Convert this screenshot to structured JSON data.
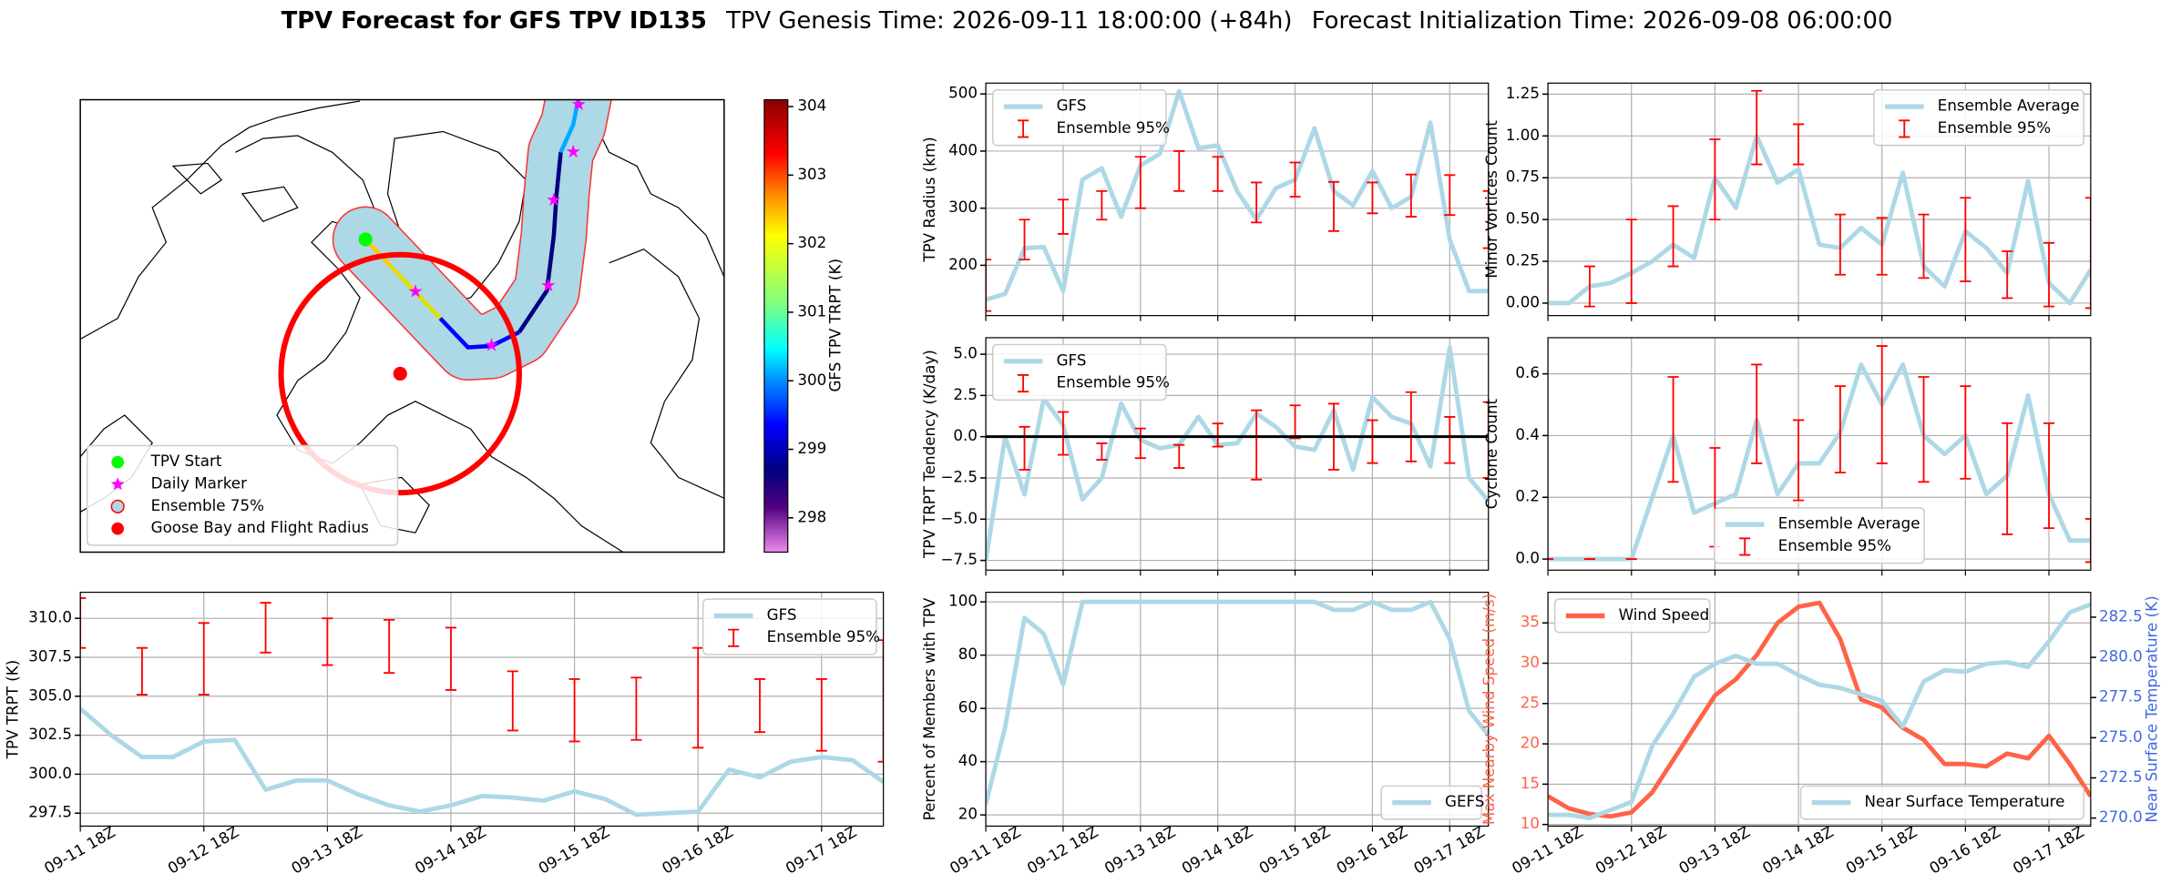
{
  "suptitle": {
    "bold": "TPV Forecast for GFS TPV ID135",
    "genesis": "TPV Genesis Time: 2026-09-11 18:00:00 (+84h)",
    "init": "Forecast Initialization Time: 2026-09-08 06:00:00"
  },
  "chart_data": [
    {
      "type": "map",
      "legend": [
        {
          "name": "TPV Start",
          "color": "#00ff00",
          "marker": "circle"
        },
        {
          "name": "Daily Marker",
          "color": "#ff00ff",
          "marker": "star"
        },
        {
          "name": "Ensemble 75%",
          "color": "#add8e6",
          "marker": "circle",
          "edge": "#ff0000"
        },
        {
          "name": "Goose Bay and Flight Radius",
          "color": "#ff0000",
          "marker": "circle"
        }
      ],
      "colorbar": {
        "label": "GFS TPV TRPT (K)",
        "ylim": [
          297.5,
          304.1
        ],
        "yticks": [
          298,
          299,
          300,
          301,
          302,
          303,
          304
        ]
      }
    },
    {
      "type": "line",
      "ylabel": "TPV TRPT (K)",
      "legend": "upper right",
      "grid": true,
      "categories": [
        "09-11 18Z",
        null,
        null,
        null,
        "09-12 18Z",
        null,
        null,
        null,
        "09-13 18Z",
        null,
        null,
        null,
        "09-14 18Z",
        null,
        null,
        null,
        "09-15 18Z",
        null,
        null,
        null,
        "09-16 18Z",
        null,
        null,
        null,
        "09-17 18Z",
        null,
        null
      ],
      "ylim": [
        296.67,
        311.67
      ],
      "yticks": [
        297.5,
        {
          "value": 300,
          "label": "300.0"
        },
        302.5,
        {
          "value": 305,
          "label": "305.0"
        },
        307.5,
        {
          "value": 310,
          "label": "310.0"
        }
      ],
      "series": [
        {
          "name": "GFS",
          "color": "#add8e6",
          "values": [
            304.2,
            302.5,
            301.1,
            301.1,
            302.1,
            302.2,
            299.0,
            299.6,
            299.6,
            298.7,
            298.0,
            297.6,
            298.0,
            298.6,
            298.5,
            298.3,
            298.9,
            298.4,
            297.4,
            297.5,
            297.6,
            300.3,
            299.8,
            300.8,
            301.1,
            300.9,
            299.5
          ]
        },
        {
          "name": "Ensemble 95%",
          "color": "#ff0000",
          "kind": "errorbar",
          "values": [
            309.7,
            null,
            306.6,
            null,
            307.4,
            null,
            309.4,
            null,
            308.5,
            null,
            308.2,
            null,
            307.4,
            null,
            304.7,
            null,
            304.1,
            null,
            304.2,
            null,
            304.9,
            null,
            304.4,
            null,
            303.8,
            null,
            304.7
          ],
          "errors": [
            1.6,
            null,
            1.5,
            null,
            2.3,
            null,
            1.6,
            null,
            1.5,
            null,
            1.7,
            null,
            2.0,
            null,
            1.9,
            null,
            2.0,
            null,
            2.0,
            null,
            3.2,
            null,
            1.7,
            null,
            2.3,
            null,
            3.9
          ]
        }
      ]
    },
    {
      "type": "line",
      "ylabel": "TPV Radius (km)",
      "legend": "upper left",
      "grid": true,
      "ylim": [
        112,
        519
      ],
      "yticks": [
        200,
        300,
        400,
        500
      ],
      "series": [
        {
          "name": "GFS",
          "color": "#add8e6",
          "values": [
            140,
            150,
            230,
            232,
            155,
            350,
            370,
            285,
            375,
            395,
            505,
            405,
            410,
            330,
            280,
            335,
            350,
            440,
            330,
            305,
            365,
            300,
            320,
            450,
            245,
            155,
            155
          ]
        },
        {
          "name": "Ensemble 95%",
          "color": "#ff0000",
          "kind": "errorbar",
          "values": [
            165,
            null,
            245,
            null,
            285,
            null,
            305,
            null,
            345,
            null,
            365,
            null,
            360,
            null,
            310,
            null,
            350,
            null,
            303,
            null,
            318,
            null,
            322,
            null,
            323,
            null,
            280
          ],
          "errors": [
            45,
            null,
            35,
            null,
            30,
            null,
            25,
            null,
            45,
            null,
            35,
            null,
            30,
            null,
            35,
            null,
            30,
            null,
            43,
            null,
            27,
            null,
            37,
            null,
            35,
            null,
            50
          ]
        }
      ]
    },
    {
      "type": "line",
      "ylabel": "TPV TRPT Tendency (K/day)",
      "legend": "upper left",
      "grid": true,
      "hline": 0,
      "ylim": [
        -8.09,
        6.0
      ],
      "yticks": [
        {
          "value": -7.5,
          "label": "−7.5"
        },
        {
          "value": -5,
          "label": "−5.0"
        },
        {
          "value": -2.5,
          "label": "−2.5"
        },
        {
          "value": 0,
          "label": "0.0"
        },
        2.5,
        {
          "value": 5,
          "label": "5.0"
        }
      ],
      "series": [
        {
          "name": "GFS",
          "color": "#add8e6",
          "values": [
            -7.5,
            0.0,
            -3.5,
            2.3,
            0.7,
            -3.8,
            -2.5,
            2.0,
            -0.2,
            -0.7,
            -0.5,
            1.2,
            -0.5,
            -0.4,
            1.4,
            0.6,
            -0.6,
            -0.8,
            1.6,
            -2.0,
            2.4,
            1.2,
            0.8,
            -1.8,
            5.4,
            -2.5,
            -3.9
          ]
        },
        {
          "name": "Ensemble 95%",
          "color": "#ff0000",
          "kind": "errorbar",
          "values": [
            null,
            null,
            -0.7,
            null,
            0.2,
            null,
            -0.9,
            null,
            -0.4,
            null,
            -1.2,
            null,
            0.1,
            null,
            -0.5,
            null,
            0.9,
            null,
            0.0,
            null,
            -0.3,
            null,
            0.6,
            null,
            -0.2,
            null,
            -0.2
          ],
          "errors": [
            null,
            null,
            1.3,
            null,
            1.3,
            null,
            0.5,
            null,
            0.9,
            null,
            0.7,
            null,
            0.7,
            null,
            2.1,
            null,
            1.0,
            null,
            2.0,
            null,
            1.3,
            null,
            2.1,
            null,
            1.4,
            null,
            2.3
          ]
        }
      ]
    },
    {
      "type": "line",
      "ylabel": "Percent of Members with TPV",
      "legend": "lower right",
      "grid": true,
      "categories": [
        "09-11 18Z",
        null,
        null,
        null,
        "09-12 18Z",
        null,
        null,
        null,
        "09-13 18Z",
        null,
        null,
        null,
        "09-14 18Z",
        null,
        null,
        null,
        "09-15 18Z",
        null,
        null,
        null,
        "09-16 18Z",
        null,
        null,
        null,
        "09-17 18Z",
        null,
        null
      ],
      "ylim": [
        15.8,
        103.6
      ],
      "yticks": [
        20,
        40,
        60,
        80,
        100
      ],
      "series": [
        {
          "name": "GEFS",
          "color": "#add8e6",
          "values": [
            24,
            53,
            94,
            88,
            69,
            100,
            100,
            100,
            100,
            100,
            100,
            100,
            100,
            100,
            100,
            100,
            100,
            100,
            97,
            97,
            100,
            97,
            97,
            100,
            86,
            59,
            50
          ]
        }
      ]
    },
    {
      "type": "line",
      "ylabel": "Minor Vortices Count",
      "legend": "upper right",
      "grid": true,
      "ylim": [
        -0.0745,
        1.316
      ],
      "yticks": [
        {
          "value": 0,
          "label": "0.00"
        },
        0.25,
        {
          "value": 0.5,
          "label": "0.50"
        },
        0.75,
        {
          "value": 1,
          "label": "1.00"
        },
        1.25
      ],
      "series": [
        {
          "name": "Ensemble Average",
          "color": "#add8e6",
          "values": [
            0,
            0,
            0.1,
            0.12,
            0.18,
            0.25,
            0.35,
            0.27,
            0.75,
            0.57,
            1.0,
            0.72,
            0.8,
            0.35,
            0.33,
            0.45,
            0.35,
            0.78,
            0.22,
            0.1,
            0.43,
            0.33,
            0.18,
            0.73,
            0.12,
            0,
            0.2
          ]
        },
        {
          "name": "Ensemble 95%",
          "color": "#ff0000",
          "kind": "errorbar",
          "values": [
            null,
            null,
            0.1,
            null,
            0.25,
            null,
            0.4,
            null,
            0.74,
            null,
            1.05,
            null,
            0.95,
            null,
            0.35,
            null,
            0.34,
            null,
            0.34,
            null,
            0.38,
            null,
            0.17,
            null,
            0.17,
            null,
            0.3
          ],
          "errors": [
            null,
            null,
            0.12,
            null,
            0.25,
            null,
            0.18,
            null,
            0.24,
            null,
            0.22,
            null,
            0.12,
            null,
            0.18,
            null,
            0.17,
            null,
            0.19,
            null,
            0.25,
            null,
            0.14,
            null,
            0.19,
            null,
            0.33
          ]
        }
      ]
    },
    {
      "type": "line",
      "ylabel": "Cyclone Count",
      "legend": "lower center",
      "grid": true,
      "ylim": [
        -0.036,
        0.717
      ],
      "yticks": [
        {
          "value": 0,
          "label": "0.0"
        },
        0.2,
        0.4,
        0.6
      ],
      "series": [
        {
          "name": "Ensemble Average",
          "color": "#add8e6",
          "values": [
            0,
            0,
            0,
            0,
            0,
            0.2,
            0.4,
            0.15,
            0.18,
            0.21,
            0.45,
            0.21,
            0.31,
            0.31,
            0.41,
            0.63,
            0.5,
            0.63,
            0.4,
            0.34,
            0.4,
            0.21,
            0.27,
            0.53,
            0.21,
            0.06,
            0.06
          ]
        },
        {
          "name": "Ensemble 95%",
          "color": "#ff0000",
          "kind": "errorbar",
          "values": [
            0,
            null,
            0,
            null,
            0,
            null,
            0.42,
            null,
            0.2,
            null,
            0.47,
            null,
            0.32,
            null,
            0.42,
            null,
            0.5,
            null,
            0.42,
            null,
            0.41,
            null,
            0.26,
            null,
            0.27,
            null,
            0.06
          ],
          "errors": [
            0,
            null,
            0,
            null,
            0,
            null,
            0.17,
            null,
            0.16,
            null,
            0.16,
            null,
            0.13,
            null,
            0.14,
            null,
            0.19,
            null,
            0.17,
            null,
            0.15,
            null,
            0.18,
            null,
            0.17,
            null,
            0.07
          ]
        }
      ]
    },
    {
      "type": "line",
      "ylabel": "Max Nearby Wind Speed (m/s)",
      "y2label": "Near Surface Temperature (K)",
      "ycolor": "#ff6347",
      "y2color": "#4169e1",
      "grid": true,
      "categories": [
        "09-11 18Z",
        null,
        null,
        null,
        "09-12 18Z",
        null,
        null,
        null,
        "09-13 18Z",
        null,
        null,
        null,
        "09-14 18Z",
        null,
        null,
        null,
        "09-15 18Z",
        null,
        null,
        null,
        "09-16 18Z",
        null,
        null,
        null,
        "09-17 18Z",
        null,
        null
      ],
      "ylim": [
        9.8,
        38.8
      ],
      "yticks": [
        10,
        15,
        20,
        25,
        30,
        35
      ],
      "y2lim": [
        269.5,
        284.05
      ],
      "y2ticks": [
        {
          "value": 270,
          "label": "270.0"
        },
        272.5,
        {
          "value": 275,
          "label": "275.0"
        },
        277.5,
        {
          "value": 280,
          "label": "280.0"
        },
        282.5
      ],
      "series": [
        {
          "name": "Wind Speed",
          "color": "#ff6347",
          "legend": "upper left",
          "values": [
            13.5,
            12,
            11.3,
            11,
            11.5,
            14,
            18,
            22,
            26,
            28,
            31,
            35,
            37,
            37.5,
            33,
            25.5,
            24.5,
            22,
            20.5,
            17.5,
            17.5,
            17.2,
            18.8,
            18.2,
            21,
            17.5,
            13.5
          ]
        },
        {
          "name": "Near Surface Temperature",
          "color": "#add8e6",
          "axis": "y2",
          "legend": "lower right",
          "values": [
            270.2,
            270.2,
            270.0,
            270.5,
            271.0,
            274.5,
            276.5,
            278.8,
            279.6,
            280.1,
            279.6,
            279.6,
            278.9,
            278.3,
            278.1,
            277.7,
            277.3,
            275.7,
            278.5,
            279.2,
            279.1,
            279.6,
            279.7,
            279.4,
            281.0,
            282.8,
            283.3
          ]
        }
      ]
    }
  ]
}
